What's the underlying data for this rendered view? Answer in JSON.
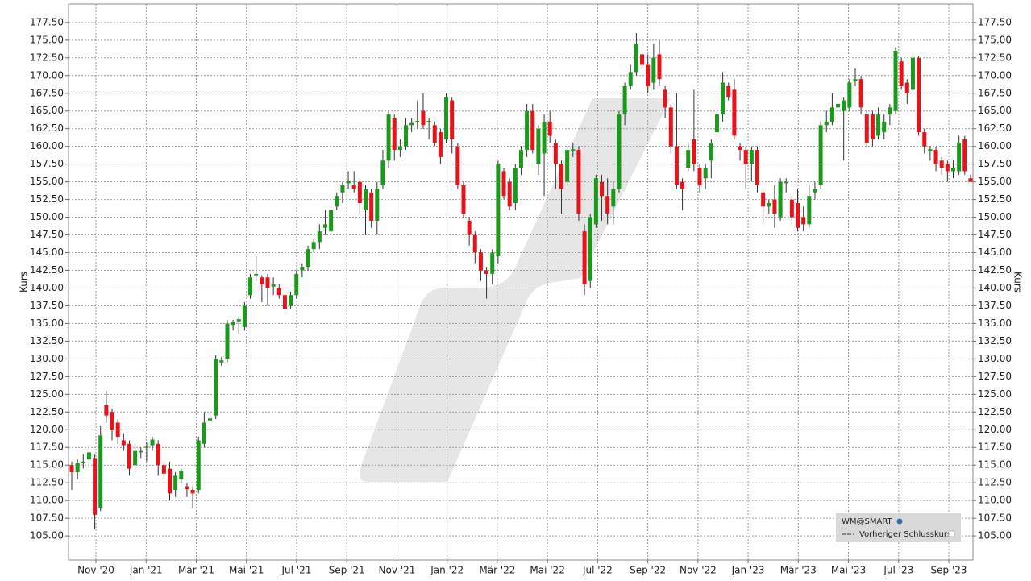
{
  "chart_data": {
    "type": "candlestick",
    "y_axis_label": "Kurs",
    "legend": {
      "title": "WM@SMART",
      "items": [
        "Vorheriger Schlusskurs"
      ]
    },
    "up_color": "#1a9a1a",
    "down_color": "#e8121a",
    "grid": true,
    "ylim": [
      101.6,
      180.1
    ],
    "yticks": [
      {
        "value": 105,
        "label": "105.00"
      },
      {
        "value": 107.5,
        "label": "107.50"
      },
      {
        "value": 110,
        "label": "110.00"
      },
      {
        "value": 112.5,
        "label": "112.50"
      },
      {
        "value": 115,
        "label": "115.00"
      },
      {
        "value": 117.5,
        "label": "117.50"
      },
      {
        "value": 120,
        "label": "120.00"
      },
      {
        "value": 122.5,
        "label": "122.50"
      },
      {
        "value": 125,
        "label": "125.00"
      },
      {
        "value": 127.5,
        "label": "127.50"
      },
      {
        "value": 130,
        "label": "130.00"
      },
      {
        "value": 132.5,
        "label": "132.50"
      },
      {
        "value": 135,
        "label": "135.00"
      },
      {
        "value": 137.5,
        "label": "137.50"
      },
      {
        "value": 140,
        "label": "140.00"
      },
      {
        "value": 142.5,
        "label": "142.50"
      },
      {
        "value": 145,
        "label": "145.00"
      },
      {
        "value": 147.5,
        "label": "147.50"
      },
      {
        "value": 150,
        "label": "150.00"
      },
      {
        "value": 152.5,
        "label": "152.50"
      },
      {
        "value": 155,
        "label": "155.00"
      },
      {
        "value": 157.5,
        "label": "157.50"
      },
      {
        "value": 160,
        "label": "160.00"
      },
      {
        "value": 162.5,
        "label": "162.50"
      },
      {
        "value": 165,
        "label": "165.00"
      },
      {
        "value": 167.5,
        "label": "167.50"
      },
      {
        "value": 170,
        "label": "170.00"
      },
      {
        "value": 172.5,
        "label": "172.50"
      },
      {
        "value": 175,
        "label": "175.00"
      },
      {
        "value": 177.5,
        "label": "177.50"
      }
    ],
    "xlim": [
      -0.56,
      156.43
    ],
    "xticks": [
      {
        "value": 4.2,
        "label": "Nov '20"
      },
      {
        "value": 12.91,
        "label": "Jan '21"
      },
      {
        "value": 21.62,
        "label": "Mär '21"
      },
      {
        "value": 30.32,
        "label": "Mai '21"
      },
      {
        "value": 39.03,
        "label": "Jul '21"
      },
      {
        "value": 47.74,
        "label": "Sep '21"
      },
      {
        "value": 56.45,
        "label": "Nov '21"
      },
      {
        "value": 65.16,
        "label": "Jan '22"
      },
      {
        "value": 73.86,
        "label": "Mär '22"
      },
      {
        "value": 82.57,
        "label": "Mai '22"
      },
      {
        "value": 91.28,
        "label": "Jul '22"
      },
      {
        "value": 99.99,
        "label": "Sep '22"
      },
      {
        "value": 108.7,
        "label": "Nov '22"
      },
      {
        "value": 117.4,
        "label": "Jan '23"
      },
      {
        "value": 126.11,
        "label": "Mär '23"
      },
      {
        "value": 134.82,
        "label": "Mai '23"
      },
      {
        "value": 143.53,
        "label": "Jul '23"
      },
      {
        "value": 152.24,
        "label": "Sep '23"
      }
    ],
    "open": [
      115,
      114,
      115.3,
      115.8,
      116,
      109,
      123.5,
      122.5,
      121,
      118.5,
      118,
      115,
      116.8,
      117.5,
      117.8,
      118,
      115,
      114.5,
      111.5,
      113,
      112,
      111.5,
      111.5,
      118,
      121.3,
      122,
      129.5,
      130,
      134.8,
      135.3,
      134.5,
      139,
      141.8,
      141.5,
      141.5,
      140.2,
      140,
      139,
      137.5,
      139,
      142.5,
      143,
      145.5,
      146.5,
      148.5,
      148,
      151.5,
      153.5,
      154.8,
      154.5,
      155,
      151,
      153.5,
      149.5,
      154.5,
      158,
      164,
      159.5,
      160,
      163,
      163.4,
      165,
      163.4,
      163,
      162,
      161,
      166.5,
      160,
      154.5,
      149.5,
      147.5,
      145,
      142.5,
      142,
      144.5,
      156.5,
      155,
      152,
      157,
      159.5,
      165,
      157.5,
      159,
      163.5,
      160.5,
      157.5,
      155,
      159.4,
      159.5,
      148,
      141,
      149,
      155,
      153,
      151.5,
      154,
      164.5,
      168.5,
      170.5,
      173,
      171.5,
      169,
      173,
      168,
      165.5,
      160,
      155,
      157,
      161,
      157,
      155.5,
      158,
      162,
      164.5,
      168.5,
      168,
      160,
      159.5,
      157.5,
      159.5,
      153.5,
      151.5,
      152.5,
      150,
      154.8,
      152.5,
      152,
      150,
      149,
      153.5,
      154.5,
      163,
      163.5,
      165.5,
      165,
      165.5,
      169.2,
      169.5,
      164.5,
      164.5,
      161.5,
      162,
      164.5,
      165,
      172,
      169,
      168,
      172.5,
      162,
      159.3,
      159.5,
      158,
      157.5,
      156.5,
      156.5,
      161,
      155.5
    ],
    "high": [
      115.5,
      115.8,
      116.5,
      117.5,
      116.5,
      120.5,
      125.5,
      123,
      121.5,
      119.5,
      118.5,
      118,
      117.5,
      118.2,
      119,
      118.5,
      115.5,
      115.5,
      114,
      114.5,
      112.5,
      112,
      119,
      122.5,
      122,
      130.5,
      130.3,
      135.5,
      135.5,
      136,
      138,
      142,
      144.5,
      141.8,
      142,
      141.5,
      140.5,
      139.5,
      139.5,
      142.5,
      143.5,
      146,
      147,
      149,
      151,
      151.5,
      153.5,
      155,
      156.5,
      156.5,
      155.5,
      154.5,
      154,
      155,
      159.5,
      165,
      164.5,
      161,
      164,
      164,
      166.5,
      167.5,
      164,
      163.5,
      162.5,
      167.5,
      167,
      160.5,
      155,
      150,
      148,
      145.5,
      143,
      145.5,
      158,
      157,
      155.5,
      157.5,
      160,
      166,
      166,
      163,
      164.5,
      165,
      161,
      158,
      160,
      160.5,
      160,
      149,
      150.5,
      156,
      156,
      155.5,
      155,
      165,
      169,
      171.5,
      176,
      175.5,
      173,
      174.5,
      175,
      168.5,
      166,
      167.5,
      155.5,
      160.5,
      168,
      157.5,
      157.5,
      161,
      165.5,
      170.5,
      169,
      169.5,
      160.5,
      160,
      160,
      160,
      154,
      152.5,
      154.5,
      155.5,
      155.5,
      153,
      154,
      151.5,
      154.5,
      155,
      163.5,
      165,
      167.5,
      166.5,
      167,
      169.5,
      171,
      170,
      165,
      165,
      165.5,
      164.5,
      166,
      174,
      172.5,
      169.5,
      173,
      172.8,
      162.5,
      160,
      160,
      158.5,
      158,
      158,
      161.5,
      161.5,
      156
    ],
    "low": [
      111.5,
      113,
      114.5,
      115,
      106,
      108.5,
      121,
      118.5,
      118,
      117,
      113.5,
      114,
      116,
      115.5,
      117,
      113.5,
      113,
      110,
      110.5,
      112.5,
      110.5,
      109,
      111,
      117.5,
      120,
      121.5,
      129,
      129.5,
      134,
      133.5,
      134,
      138.5,
      141,
      138,
      137.5,
      139,
      138.5,
      136.5,
      137,
      138.5,
      141.5,
      142.5,
      145,
      145.5,
      147.5,
      147.5,
      151,
      152,
      154,
      153.5,
      150.5,
      147.5,
      148.5,
      147.5,
      154,
      157,
      158,
      158.5,
      159.5,
      162,
      162.5,
      162.5,
      161,
      160,
      157.5,
      160.5,
      159,
      154,
      150,
      146,
      143.5,
      141,
      138.5,
      140.5,
      143.5,
      152.5,
      151,
      151,
      156,
      158.5,
      159,
      156,
      153,
      160.5,
      154,
      150.5,
      154.5,
      158.5,
      149.5,
      139,
      140,
      148.5,
      149.5,
      149,
      149,
      153.5,
      163,
      168,
      170,
      170,
      167.5,
      168,
      168.5,
      164,
      159,
      154,
      151,
      156.5,
      156.5,
      153.5,
      154,
      155.5,
      161.5,
      163.5,
      166.5,
      161,
      158,
      154,
      155,
      153.5,
      149,
      150.5,
      148.5,
      149.5,
      153.5,
      149,
      148,
      148,
      148.5,
      152.5,
      154,
      162,
      163,
      164,
      158,
      165,
      168.5,
      164.5,
      160,
      160,
      161,
      161,
      163,
      164.5,
      168,
      166,
      167.5,
      161.5,
      159,
      158,
      156.5,
      156,
      155,
      155.5,
      156,
      156,
      155
    ],
    "close": [
      114,
      115.3,
      115.5,
      116.8,
      108,
      119.2,
      122,
      120,
      119,
      117.8,
      114.5,
      117,
      117,
      117.6,
      118.6,
      115,
      113.8,
      111,
      113.5,
      114.2,
      111.6,
      111,
      118.5,
      121,
      121.6,
      130,
      129.8,
      135,
      135.2,
      135.6,
      137.5,
      141.5,
      142,
      140.5,
      140,
      140.5,
      139,
      137,
      139,
      142,
      143,
      145.5,
      146.5,
      148,
      149,
      151,
      153,
      154.5,
      155.2,
      154,
      152,
      154,
      149.5,
      154,
      158,
      164.5,
      159.5,
      160,
      163,
      163.3,
      163.6,
      163,
      163.6,
      160.5,
      158.5,
      167,
      161,
      154.5,
      150.5,
      147.5,
      145,
      142.5,
      142,
      145,
      157.5,
      153,
      151.5,
      157,
      159.5,
      165,
      159.5,
      162.5,
      163.5,
      161.5,
      157.5,
      154,
      159.5,
      159.6,
      150.5,
      140.5,
      150,
      155.5,
      153,
      150.5,
      154,
      164.5,
      168.5,
      170.5,
      174.5,
      171.5,
      168.5,
      172.5,
      169.5,
      165.5,
      160,
      154.5,
      154,
      159.5,
      157.5,
      154.5,
      157,
      160.5,
      164.5,
      169,
      167,
      161.5,
      159.5,
      157.5,
      159.5,
      154.5,
      151.5,
      152,
      150.5,
      155,
      155,
      150,
      148.5,
      149,
      153,
      154,
      163,
      163.5,
      165.5,
      166,
      166.5,
      169,
      169.5,
      165.5,
      160.5,
      161,
      164.5,
      163.5,
      165.5,
      173.5,
      168.5,
      167.5,
      172.5,
      162,
      160,
      159.6,
      157.5,
      157,
      156.5,
      157,
      160.5,
      156.5,
      155
    ]
  }
}
